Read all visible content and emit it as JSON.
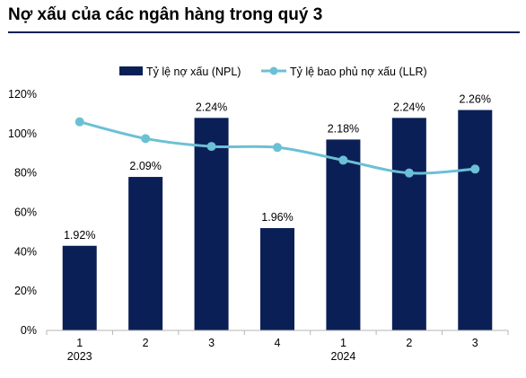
{
  "title": "Nợ xấu của các ngân hàng trong quý 3",
  "colors": {
    "bar": "#0b1f57",
    "line": "#6cc0d6",
    "rule": "#0b1f57"
  },
  "chart_data": {
    "type": "bar",
    "title": "Nợ xấu của các ngân hàng trong quý 3",
    "categories": [
      "1",
      "2",
      "3",
      "4",
      "1",
      "2",
      "3"
    ],
    "year_groups": [
      {
        "label": "2023",
        "from": 0,
        "to": 3
      },
      {
        "label": "2024",
        "from": 4,
        "to": 6
      }
    ],
    "series": [
      {
        "name": "Tỷ lệ nợ xấu (NPL)",
        "kind": "bar",
        "values": [
          1.92,
          2.09,
          2.24,
          1.96,
          2.18,
          2.24,
          2.26
        ],
        "bar_height_pct": [
          43,
          78,
          108,
          52,
          97,
          108,
          112
        ],
        "labels": [
          "1.92%",
          "2.09%",
          "2.24%",
          "1.96%",
          "2.18%",
          "2.24%",
          "2.26%"
        ]
      },
      {
        "name": "Tỷ lệ bao phủ nợ xấu (LLR)",
        "kind": "line",
        "values": [
          106,
          97.5,
          93.5,
          93,
          86.5,
          80,
          82
        ]
      }
    ],
    "y_ticks": [
      "0%",
      "20%",
      "40%",
      "60%",
      "80%",
      "100%",
      "120%"
    ],
    "ylim": [
      0,
      120
    ],
    "xlabel": "",
    "ylabel": "",
    "grid": false,
    "legend_position": "top"
  }
}
